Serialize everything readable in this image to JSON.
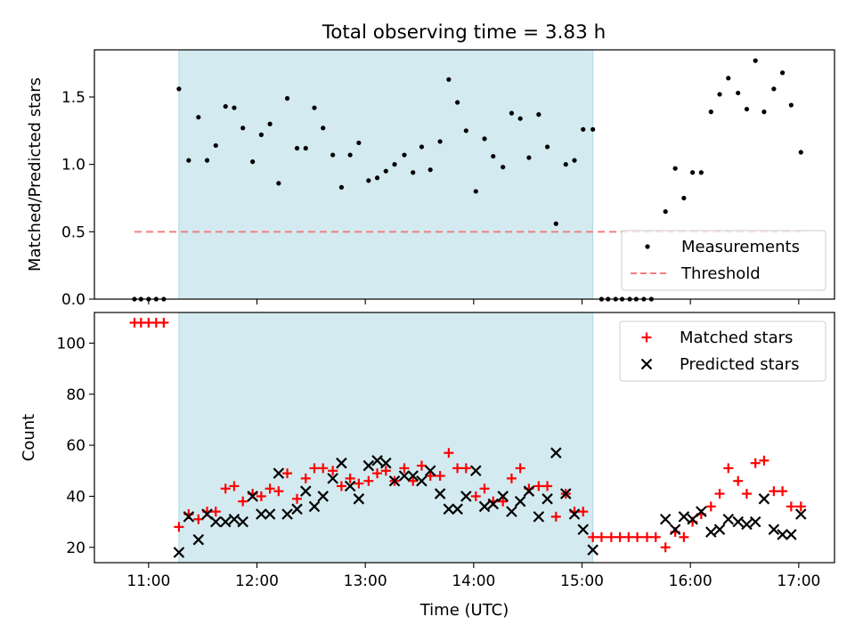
{
  "figure": {
    "title": "Total observing time = 3.83 h",
    "shade_color": "#d3eaf0",
    "shade_edge_color": "#add8e6"
  },
  "chart_data": [
    {
      "type": "scatter",
      "panel": "top",
      "title": "Total observing time = 3.83 h",
      "xlabel": "",
      "ylabel": "Matched/Predicted stars",
      "xlim_hours": [
        10.5,
        17.33
      ],
      "ylim": [
        0,
        1.85
      ],
      "xticks": [
        11,
        12,
        13,
        14,
        15,
        16,
        17
      ],
      "xtick_labels": [],
      "yticks": [
        0.0,
        0.5,
        1.0,
        1.5
      ],
      "ytick_labels": [
        "0.0",
        "0.5",
        "1.0",
        "1.5"
      ],
      "grid": false,
      "legend_position": "lower right",
      "shaded_span_hours": [
        11.28,
        15.1
      ],
      "series": [
        {
          "name": "Measurements",
          "kind": "points",
          "color": "#000000",
          "points": [
            [
              10.87,
              0.0
            ],
            [
              10.93,
              0.0
            ],
            [
              11.0,
              0.0
            ],
            [
              11.07,
              0.0
            ],
            [
              11.14,
              0.0
            ],
            [
              11.28,
              1.56
            ],
            [
              11.37,
              1.03
            ],
            [
              11.46,
              1.35
            ],
            [
              11.54,
              1.03
            ],
            [
              11.62,
              1.14
            ],
            [
              11.71,
              1.43
            ],
            [
              11.79,
              1.42
            ],
            [
              11.87,
              1.27
            ],
            [
              11.96,
              1.02
            ],
            [
              12.04,
              1.22
            ],
            [
              12.12,
              1.3
            ],
            [
              12.2,
              0.86
            ],
            [
              12.28,
              1.49
            ],
            [
              12.37,
              1.12
            ],
            [
              12.45,
              1.12
            ],
            [
              12.53,
              1.42
            ],
            [
              12.61,
              1.27
            ],
            [
              12.7,
              1.07
            ],
            [
              12.78,
              0.83
            ],
            [
              12.86,
              1.07
            ],
            [
              12.94,
              1.16
            ],
            [
              13.03,
              0.88
            ],
            [
              13.11,
              0.9
            ],
            [
              13.19,
              0.95
            ],
            [
              13.27,
              1.0
            ],
            [
              13.36,
              1.07
            ],
            [
              13.44,
              0.94
            ],
            [
              13.52,
              1.13
            ],
            [
              13.6,
              0.96
            ],
            [
              13.69,
              1.17
            ],
            [
              13.77,
              1.63
            ],
            [
              13.85,
              1.46
            ],
            [
              13.93,
              1.25
            ],
            [
              14.02,
              0.8
            ],
            [
              14.1,
              1.19
            ],
            [
              14.18,
              1.06
            ],
            [
              14.27,
              0.98
            ],
            [
              14.35,
              1.38
            ],
            [
              14.43,
              1.34
            ],
            [
              14.51,
              1.05
            ],
            [
              14.6,
              1.37
            ],
            [
              14.68,
              1.13
            ],
            [
              14.76,
              0.56
            ],
            [
              14.85,
              1.0
            ],
            [
              14.93,
              1.03
            ],
            [
              15.01,
              1.26
            ],
            [
              15.1,
              1.26
            ],
            [
              15.18,
              0.0
            ],
            [
              15.24,
              0.0
            ],
            [
              15.31,
              0.0
            ],
            [
              15.37,
              0.0
            ],
            [
              15.44,
              0.0
            ],
            [
              15.5,
              0.0
            ],
            [
              15.57,
              0.0
            ],
            [
              15.64,
              0.0
            ],
            [
              15.77,
              0.65
            ],
            [
              15.86,
              0.97
            ],
            [
              15.94,
              0.75
            ],
            [
              16.02,
              0.94
            ],
            [
              16.1,
              0.94
            ],
            [
              16.19,
              1.39
            ],
            [
              16.27,
              1.52
            ],
            [
              16.35,
              1.64
            ],
            [
              16.44,
              1.53
            ],
            [
              16.52,
              1.41
            ],
            [
              16.6,
              1.77
            ],
            [
              16.68,
              1.39
            ],
            [
              16.77,
              1.56
            ],
            [
              16.85,
              1.68
            ],
            [
              16.93,
              1.44
            ],
            [
              17.02,
              1.09
            ]
          ]
        },
        {
          "name": "Threshold",
          "kind": "dashed-line",
          "color": "#f08080",
          "x_hours": [
            10.87,
            17.02
          ],
          "y": [
            0.5,
            0.5
          ]
        }
      ]
    },
    {
      "type": "scatter",
      "panel": "bottom",
      "title": "",
      "xlabel": "Time (UTC)",
      "ylabel": "Count",
      "xlim_hours": [
        10.5,
        17.33
      ],
      "ylim": [
        14,
        112
      ],
      "xticks": [
        11,
        12,
        13,
        14,
        15,
        16,
        17
      ],
      "xtick_labels": [
        "11:00",
        "12:00",
        "13:00",
        "14:00",
        "15:00",
        "16:00",
        "17:00"
      ],
      "yticks": [
        20,
        40,
        60,
        80,
        100
      ],
      "ytick_labels": [
        "20",
        "40",
        "60",
        "80",
        "100"
      ],
      "grid": false,
      "legend_position": "upper right",
      "shaded_span_hours": [
        11.28,
        15.1
      ],
      "series": [
        {
          "name": "Matched stars",
          "kind": "plus",
          "color": "#ff0000",
          "points": [
            [
              10.87,
              108
            ],
            [
              10.93,
              108
            ],
            [
              11.0,
              108
            ],
            [
              11.07,
              108
            ],
            [
              11.14,
              108
            ],
            [
              11.28,
              28
            ],
            [
              11.37,
              33
            ],
            [
              11.46,
              31
            ],
            [
              11.54,
              34
            ],
            [
              11.62,
              34
            ],
            [
              11.71,
              43
            ],
            [
              11.79,
              44
            ],
            [
              11.87,
              38
            ],
            [
              11.96,
              41
            ],
            [
              12.04,
              40
            ],
            [
              12.12,
              43
            ],
            [
              12.2,
              42
            ],
            [
              12.28,
              49
            ],
            [
              12.37,
              39
            ],
            [
              12.45,
              47
            ],
            [
              12.53,
              51
            ],
            [
              12.61,
              51
            ],
            [
              12.7,
              50
            ],
            [
              12.78,
              44
            ],
            [
              12.86,
              47
            ],
            [
              12.94,
              45
            ],
            [
              13.03,
              46
            ],
            [
              13.11,
              49
            ],
            [
              13.19,
              50
            ],
            [
              13.27,
              46
            ],
            [
              13.36,
              51
            ],
            [
              13.44,
              46
            ],
            [
              13.52,
              52
            ],
            [
              13.6,
              48
            ],
            [
              13.69,
              48
            ],
            [
              13.77,
              57
            ],
            [
              13.85,
              51
            ],
            [
              13.93,
              51
            ],
            [
              14.02,
              40
            ],
            [
              14.1,
              43
            ],
            [
              14.18,
              38
            ],
            [
              14.27,
              38
            ],
            [
              14.35,
              47
            ],
            [
              14.43,
              51
            ],
            [
              14.51,
              43
            ],
            [
              14.6,
              44
            ],
            [
              14.68,
              44
            ],
            [
              14.76,
              32
            ],
            [
              14.85,
              41
            ],
            [
              14.93,
              34
            ],
            [
              15.01,
              34
            ],
            [
              15.1,
              24
            ],
            [
              15.18,
              24
            ],
            [
              15.27,
              24
            ],
            [
              15.35,
              24
            ],
            [
              15.43,
              24
            ],
            [
              15.51,
              24
            ],
            [
              15.6,
              24
            ],
            [
              15.68,
              24
            ],
            [
              15.77,
              20
            ],
            [
              15.86,
              26
            ],
            [
              15.94,
              24
            ],
            [
              16.02,
              30
            ],
            [
              16.1,
              33
            ],
            [
              16.19,
              36
            ],
            [
              16.27,
              41
            ],
            [
              16.35,
              51
            ],
            [
              16.44,
              46
            ],
            [
              16.52,
              41
            ],
            [
              16.6,
              53
            ],
            [
              16.68,
              54
            ],
            [
              16.77,
              42
            ],
            [
              16.85,
              42
            ],
            [
              16.93,
              36
            ],
            [
              17.02,
              36
            ]
          ]
        },
        {
          "name": "Predicted stars",
          "kind": "x",
          "color": "#000000",
          "points": [
            [
              11.28,
              18
            ],
            [
              11.37,
              32
            ],
            [
              11.46,
              23
            ],
            [
              11.54,
              33
            ],
            [
              11.62,
              30
            ],
            [
              11.71,
              30
            ],
            [
              11.79,
              31
            ],
            [
              11.87,
              30
            ],
            [
              11.96,
              40
            ],
            [
              12.04,
              33
            ],
            [
              12.12,
              33
            ],
            [
              12.2,
              49
            ],
            [
              12.28,
              33
            ],
            [
              12.37,
              35
            ],
            [
              12.45,
              42
            ],
            [
              12.53,
              36
            ],
            [
              12.61,
              40
            ],
            [
              12.7,
              47
            ],
            [
              12.78,
              53
            ],
            [
              12.86,
              44
            ],
            [
              12.94,
              39
            ],
            [
              13.03,
              52
            ],
            [
              13.11,
              54
            ],
            [
              13.19,
              53
            ],
            [
              13.27,
              46
            ],
            [
              13.36,
              48
            ],
            [
              13.44,
              48
            ],
            [
              13.52,
              46
            ],
            [
              13.6,
              50
            ],
            [
              13.69,
              41
            ],
            [
              13.77,
              35
            ],
            [
              13.85,
              35
            ],
            [
              13.93,
              40
            ],
            [
              14.02,
              50
            ],
            [
              14.1,
              36
            ],
            [
              14.18,
              37
            ],
            [
              14.27,
              40
            ],
            [
              14.35,
              34
            ],
            [
              14.43,
              38
            ],
            [
              14.51,
              42
            ],
            [
              14.6,
              32
            ],
            [
              14.68,
              39
            ],
            [
              14.76,
              57
            ],
            [
              14.85,
              41
            ],
            [
              14.93,
              33
            ],
            [
              15.01,
              27
            ],
            [
              15.1,
              19
            ],
            [
              15.77,
              31
            ],
            [
              15.86,
              27
            ],
            [
              15.94,
              32
            ],
            [
              16.02,
              31
            ],
            [
              16.1,
              34
            ],
            [
              16.19,
              26
            ],
            [
              16.27,
              27
            ],
            [
              16.35,
              31
            ],
            [
              16.44,
              30
            ],
            [
              16.52,
              29
            ],
            [
              16.6,
              30
            ],
            [
              16.68,
              39
            ],
            [
              16.77,
              27
            ],
            [
              16.85,
              25
            ],
            [
              16.93,
              25
            ],
            [
              17.02,
              33
            ]
          ]
        }
      ]
    }
  ]
}
